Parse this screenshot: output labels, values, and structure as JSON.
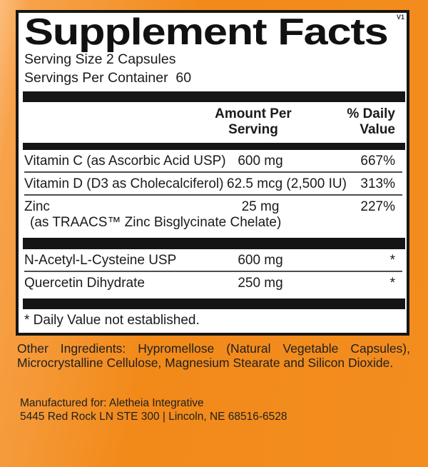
{
  "version_tag": "V1",
  "colors": {
    "background_orange": "#f28a1a",
    "background_orange_light_edge": "#fcbd7d",
    "panel_background": "#ffffff",
    "bar_black": "#151515",
    "hairline_gray": "#4d4d4d",
    "text": "#1a1a1a"
  },
  "panel": {
    "title": "Supplement Facts",
    "serving_size": "Serving Size 2 Capsules",
    "servings_per_container": "Servings Per Container  60",
    "amount_header": [
      "Amount Per",
      "Serving"
    ],
    "dv_header": [
      "% Daily",
      "Value"
    ],
    "sections": [
      {
        "rows": [
          {
            "name": "Vitamin C (as Ascorbic Acid USP)",
            "amount": "600 mg",
            "dv": "667%"
          },
          {
            "name": "Vitamin D (D3 as Cholecalciferol)",
            "amount": "62.5 mcg (2,500 IU)",
            "dv": "313%"
          },
          {
            "name": "Zinc",
            "name_sub": "(as TRAACS™ Zinc Bisglycinate Chelate)",
            "amount": "25 mg",
            "dv": "227%"
          }
        ]
      },
      {
        "rows": [
          {
            "name": "N-Acetyl-L-Cysteine USP",
            "amount": "600 mg",
            "dv": "*"
          },
          {
            "name": "Quercetin Dihydrate",
            "amount": "250 mg",
            "dv": "*"
          }
        ]
      }
    ],
    "footnote": "* Daily Value not established."
  },
  "other_ingredients": "Other Ingredients: Hypromellose (Natural Vegetable Capsules), Microcrystalline Cellulose, Magnesium Stearate and Silicon Dioxide.",
  "manufacturer": {
    "line1": "Manufactured for: Aletheia Integrative",
    "line2": "5445 Red Rock LN STE 300 | Lincoln, NE 68516-6528"
  }
}
